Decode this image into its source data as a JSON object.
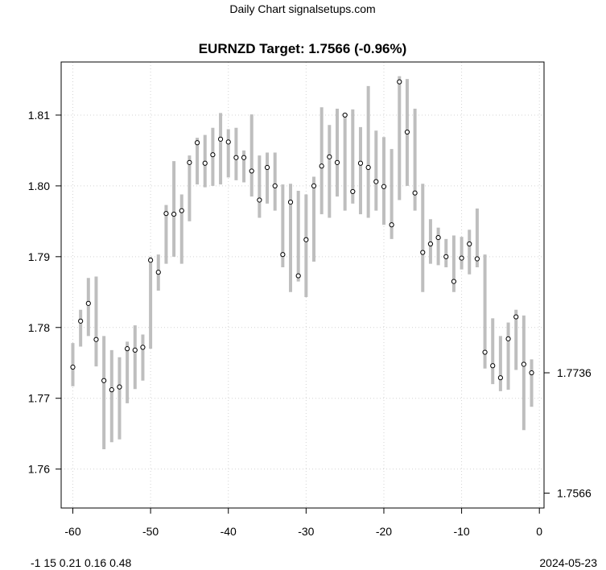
{
  "header": {
    "site_title": "Daily Chart signalsetups.com"
  },
  "footer": {
    "params": "-1 15 0.21 0.16 0.48",
    "date": "2024-05-23"
  },
  "colors": {
    "range_bar": "#bebebe",
    "grid": "#d3d3d3",
    "point_fill": "#ffffff",
    "axis": "#000000"
  },
  "chart_data": {
    "type": "scatter",
    "title": "EURNZD Target: 1.7566 (-0.96%)",
    "xlabel": "",
    "ylabel": "",
    "xlim": [
      -61.5,
      0.6
    ],
    "ylim": [
      1.7545,
      1.8175
    ],
    "x_ticks": [
      -60,
      -50,
      -40,
      -30,
      -20,
      -10,
      0
    ],
    "y_ticks": [
      1.76,
      1.77,
      1.78,
      1.79,
      1.8,
      1.81
    ],
    "y_tick_labels": [
      "1.76",
      "1.77",
      "1.78",
      "1.79",
      "1.80",
      "1.81"
    ],
    "right_axis": {
      "ticks": [
        1.7736,
        1.7566
      ],
      "labels": [
        "1.7736",
        "1.7566"
      ]
    },
    "grid": true,
    "x": [
      -60,
      -59,
      -58,
      -57,
      -56,
      -55,
      -54,
      -53,
      -52,
      -51,
      -50,
      -49,
      -48,
      -47,
      -46,
      -45,
      -44,
      -43,
      -42,
      -41,
      -40,
      -39,
      -38,
      -37,
      -36,
      -35,
      -34,
      -33,
      -32,
      -31,
      -30,
      -29,
      -28,
      -27,
      -26,
      -25,
      -24,
      -23,
      -22,
      -21,
      -20,
      -19,
      -18,
      -17,
      -16,
      -15,
      -14,
      -13,
      -12,
      -11,
      -10,
      -9,
      -8,
      -7,
      -6,
      -5,
      -4,
      -3,
      -2,
      -1
    ],
    "close": [
      1.7744,
      1.7809,
      1.7834,
      1.7783,
      1.7725,
      1.7712,
      1.7716,
      1.777,
      1.7768,
      1.7772,
      1.7895,
      1.7878,
      1.7961,
      1.796,
      1.7965,
      1.8033,
      1.8061,
      1.8032,
      1.8044,
      1.8066,
      1.8062,
      1.804,
      1.804,
      1.8021,
      1.798,
      1.8026,
      1.8,
      1.7903,
      1.7977,
      1.7873,
      1.7924,
      1.8,
      1.8028,
      1.8041,
      1.8033,
      1.81,
      1.7992,
      1.8032,
      1.8026,
      1.8006,
      1.7999,
      1.7945,
      1.8147,
      1.8076,
      1.799,
      1.7906,
      1.7918,
      1.7927,
      1.79,
      1.7865,
      1.7898,
      1.7918,
      1.7897,
      1.7765,
      1.7746,
      1.7729,
      1.7784,
      1.7815,
      1.7748,
      1.7736
    ],
    "low": [
      1.7717,
      1.7773,
      1.7788,
      1.7745,
      1.7628,
      1.7638,
      1.7642,
      1.7693,
      1.7713,
      1.7725,
      1.777,
      1.7852,
      1.789,
      1.79,
      1.789,
      1.795,
      1.8002,
      1.7998,
      1.8,
      1.8002,
      1.8012,
      1.8008,
      1.8005,
      1.7985,
      1.7955,
      1.7975,
      1.7965,
      1.7885,
      1.785,
      1.7865,
      1.7843,
      1.7893,
      1.796,
      1.7955,
      1.7985,
      1.7965,
      1.7975,
      1.796,
      1.7955,
      1.7965,
      1.7945,
      1.7925,
      1.798,
      1.8,
      1.7965,
      1.785,
      1.789,
      1.7888,
      1.7885,
      1.785,
      1.7882,
      1.7875,
      1.7885,
      1.7742,
      1.772,
      1.771,
      1.7712,
      1.774,
      1.7655,
      1.7688
    ],
    "high": [
      1.7778,
      1.7825,
      1.787,
      1.7872,
      1.7788,
      1.7768,
      1.7758,
      1.778,
      1.7803,
      1.779,
      1.79,
      1.7903,
      1.7973,
      1.8035,
      1.7988,
      1.8043,
      1.8068,
      1.8072,
      1.8082,
      1.8103,
      1.808,
      1.8082,
      1.805,
      1.8101,
      1.8043,
      1.8047,
      1.8047,
      1.8002,
      1.8003,
      1.7993,
      1.7988,
      1.8013,
      1.8111,
      1.8086,
      1.8109,
      1.8098,
      1.8108,
      1.8083,
      1.8141,
      1.8078,
      1.8069,
      1.8052,
      1.8155,
      1.8151,
      1.8109,
      1.8003,
      1.7953,
      1.7941,
      1.7925,
      1.793,
      1.7928,
      1.7938,
      1.7968,
      1.7903,
      1.7813,
      1.7788,
      1.7807,
      1.7825,
      1.7817,
      1.7755
    ]
  }
}
